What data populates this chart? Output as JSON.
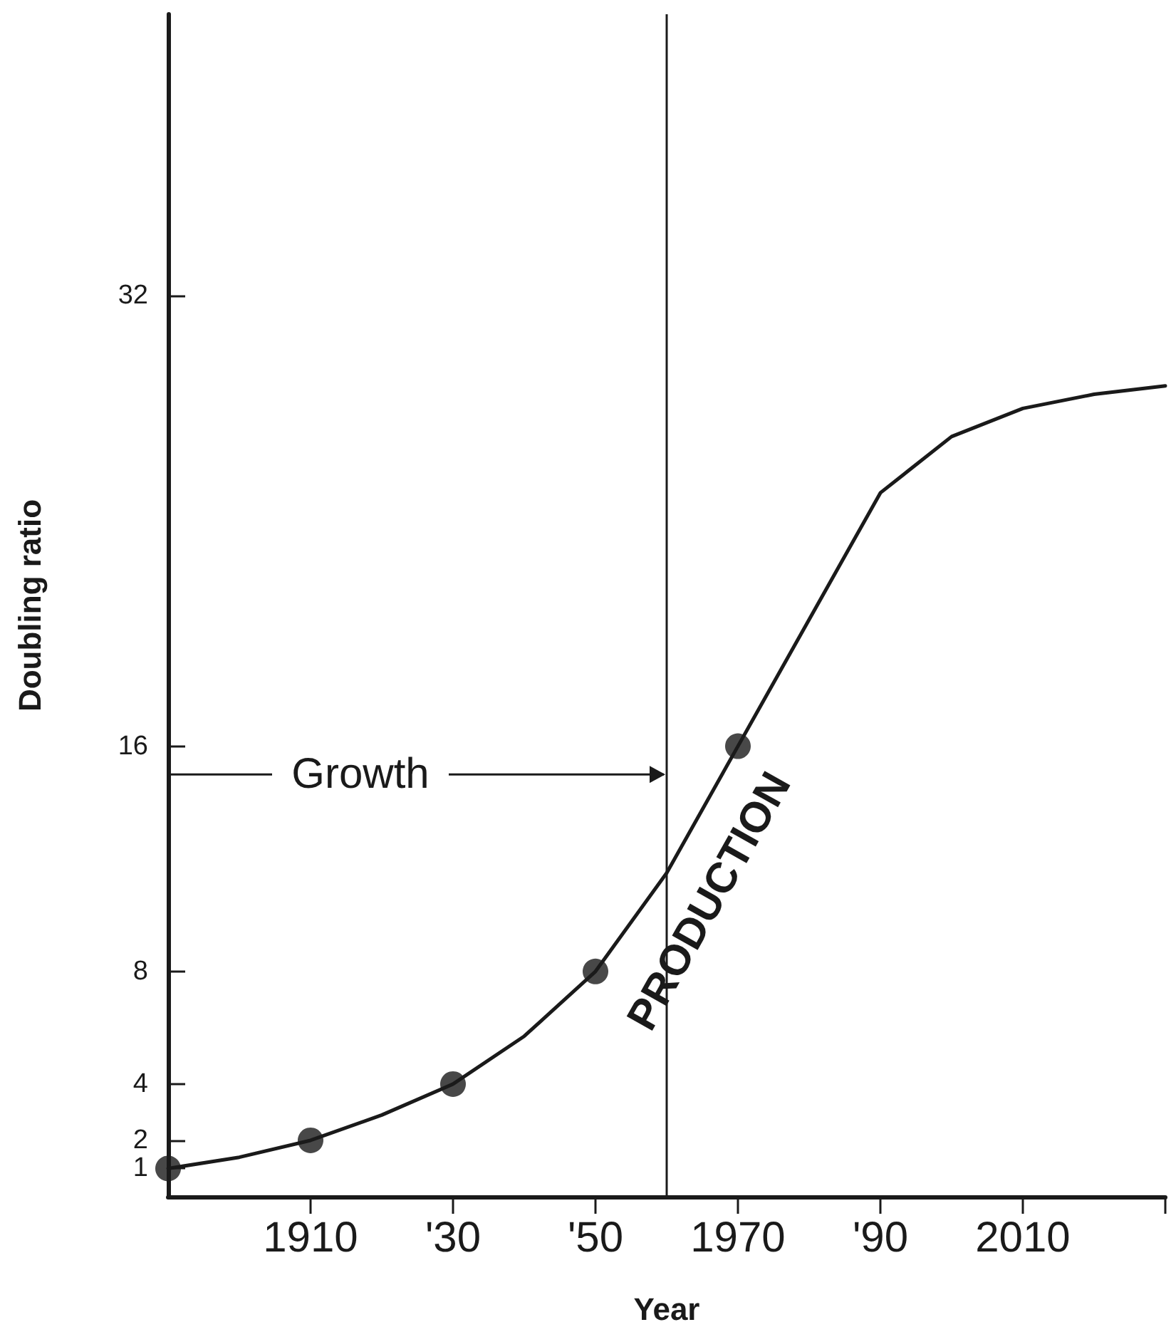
{
  "chart_data": {
    "type": "line",
    "xlabel": "Year",
    "ylabel": "Doubling ratio",
    "xlim": [
      1890,
      2030
    ],
    "xticks": [
      {
        "value": 1910,
        "label": "1910"
      },
      {
        "value": 1930,
        "label": "'30"
      },
      {
        "value": 1950,
        "label": "'50"
      },
      {
        "value": 1970,
        "label": "1970"
      },
      {
        "value": 1990,
        "label": "'90"
      },
      {
        "value": 2010,
        "label": "2010"
      },
      {
        "value": 2030,
        "label": null
      }
    ],
    "ylim": [
      0,
      42
    ],
    "yticks": [
      1,
      2,
      4,
      8,
      16,
      32
    ],
    "series": [
      {
        "color": "#1a1a1a",
        "marker": "none",
        "line_style": "solid",
        "x": [
          1890,
          1900,
          1910,
          1920,
          1930,
          1940,
          1950,
          1960,
          1970,
          1980,
          1990,
          2000,
          2010,
          2020,
          2030
        ],
        "values": [
          1,
          1.4,
          2,
          2.9,
          4,
          5.7,
          8,
          11.5,
          16,
          20.5,
          25,
          27,
          28,
          28.5,
          28.8
        ]
      },
      {
        "type": "scatter",
        "color": "#1a1a1a",
        "marker": "circle",
        "x": [
          1890,
          1910,
          1930,
          1950,
          1970
        ],
        "values": [
          1,
          2,
          4,
          8,
          16
        ]
      }
    ],
    "ref_lines": [
      {
        "axis": "x",
        "value": 1960,
        "color": "#1a1a1a"
      }
    ],
    "annotations": [
      {
        "text": "Growth",
        "x": 1960,
        "y": 15
      },
      "PRODUCTION"
    ]
  }
}
